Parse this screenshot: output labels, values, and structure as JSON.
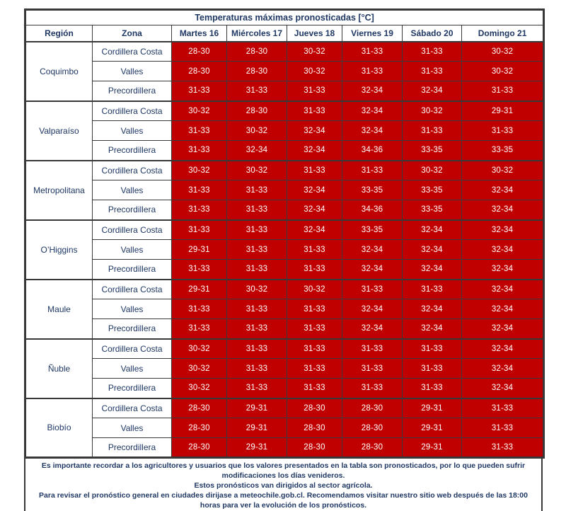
{
  "title": "Temperaturas máximas pronosticadas [°C]",
  "columns": [
    "Región",
    "Zona",
    "Martes 16",
    "Miércoles 17",
    "Jueves 18",
    "Viernes 19",
    "Sábado 20",
    "Domingo 21"
  ],
  "regions": [
    {
      "name": "Coquimbo",
      "zones": [
        {
          "name": "Cordillera Costa",
          "values": [
            "28-30",
            "28-30",
            "30-32",
            "31-33",
            "31-33",
            "30-32"
          ]
        },
        {
          "name": "Valles",
          "values": [
            "28-30",
            "28-30",
            "30-32",
            "31-33",
            "31-33",
            "30-32"
          ]
        },
        {
          "name": "Precordillera",
          "values": [
            "31-33",
            "31-33",
            "31-33",
            "32-34",
            "32-34",
            "31-33"
          ]
        }
      ]
    },
    {
      "name": "Valparaíso",
      "zones": [
        {
          "name": "Cordillera Costa",
          "values": [
            "30-32",
            "28-30",
            "31-33",
            "32-34",
            "30-32",
            "29-31"
          ]
        },
        {
          "name": "Valles",
          "values": [
            "31-33",
            "30-32",
            "32-34",
            "32-34",
            "31-33",
            "31-33"
          ]
        },
        {
          "name": "Precordillera",
          "values": [
            "31-33",
            "32-34",
            "32-34",
            "34-36",
            "33-35",
            "33-35"
          ]
        }
      ]
    },
    {
      "name": "Metropolitana",
      "zones": [
        {
          "name": "Cordillera Costa",
          "values": [
            "30-32",
            "30-32",
            "31-33",
            "31-33",
            "30-32",
            "30-32"
          ]
        },
        {
          "name": "Valles",
          "values": [
            "31-33",
            "31-33",
            "32-34",
            "33-35",
            "33-35",
            "32-34"
          ]
        },
        {
          "name": "Precordillera",
          "values": [
            "31-33",
            "31-33",
            "32-34",
            "34-36",
            "33-35",
            "32-34"
          ]
        }
      ]
    },
    {
      "name": "O’Higgins",
      "zones": [
        {
          "name": "Cordillera Costa",
          "values": [
            "31-33",
            "31-33",
            "32-34",
            "33-35",
            "32-34",
            "32-34"
          ]
        },
        {
          "name": "Valles",
          "values": [
            "29-31",
            "31-33",
            "31-33",
            "32-34",
            "32-34",
            "32-34"
          ]
        },
        {
          "name": "Precordillera",
          "values": [
            "31-33",
            "31-33",
            "31-33",
            "32-34",
            "32-34",
            "32-34"
          ]
        }
      ]
    },
    {
      "name": "Maule",
      "zones": [
        {
          "name": "Cordillera Costa",
          "values": [
            "29-31",
            "30-32",
            "30-32",
            "31-33",
            "31-33",
            "32-34"
          ]
        },
        {
          "name": "Valles",
          "values": [
            "31-33",
            "31-33",
            "31-33",
            "32-34",
            "32-34",
            "32-34"
          ]
        },
        {
          "name": "Precordillera",
          "values": [
            "31-33",
            "31-33",
            "31-33",
            "32-34",
            "32-34",
            "32-34"
          ]
        }
      ]
    },
    {
      "name": "Ñuble",
      "zones": [
        {
          "name": "Cordillera Costa",
          "values": [
            "30-32",
            "31-33",
            "31-33",
            "31-33",
            "31-33",
            "32-34"
          ]
        },
        {
          "name": "Valles",
          "values": [
            "30-32",
            "31-33",
            "31-33",
            "31-33",
            "31-33",
            "32-34"
          ]
        },
        {
          "name": "Precordillera",
          "values": [
            "30-32",
            "31-33",
            "31-33",
            "31-33",
            "31-33",
            "32-34"
          ]
        }
      ]
    },
    {
      "name": "Biobío",
      "zones": [
        {
          "name": "Cordillera Costa",
          "values": [
            "28-30",
            "29-31",
            "28-30",
            "28-30",
            "29-31",
            "31-33"
          ]
        },
        {
          "name": "Valles",
          "values": [
            "28-30",
            "29-31",
            "28-30",
            "28-30",
            "29-31",
            "31-33"
          ]
        },
        {
          "name": "Precordillera",
          "values": [
            "28-30",
            "29-31",
            "28-30",
            "28-30",
            "29-31",
            "31-33"
          ]
        }
      ]
    }
  ],
  "footer": {
    "line1": "Es importante recordar a los agricultores y usuarios que los valores presentados en la tabla son pronosticados, por lo que pueden sufrir modificaciones los días venideros.",
    "line2": "Estos pronósticos van dirigidos al sector agrícola.",
    "line3": "Para revisar el pronóstico general en ciudades dirijase a meteochile.gob.cl. Recomendamos visitar nuestro sitio web después de las 18:00 horas para ver la evolución de los pronósticos."
  },
  "colors": {
    "cell_red": "#C00000",
    "text_navy": "#1F3864",
    "cell_text": "#FFFFFF",
    "border": "#383838"
  }
}
